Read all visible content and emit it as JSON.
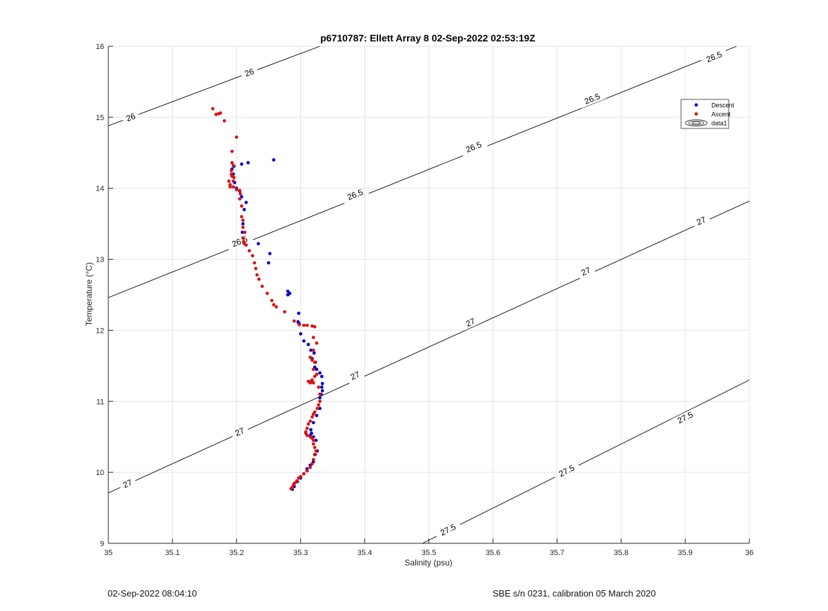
{
  "chart_data": {
    "type": "scatter",
    "title": "p6710787: Ellett Array 8 02-Sep-2022 02:53:19Z",
    "xlabel": "Salinity (psu)",
    "ylabel": "Temperature (°C)",
    "xlim": [
      35,
      36
    ],
    "ylim": [
      9,
      16
    ],
    "xticks": [
      "35",
      "35.1",
      "35.2",
      "35.3",
      "35.4",
      "35.5",
      "35.6",
      "35.7",
      "35.8",
      "35.9",
      "36"
    ],
    "yticks": [
      "9",
      "10",
      "11",
      "12",
      "13",
      "14",
      "15",
      "16"
    ],
    "grid": true,
    "legend_position": "top-right",
    "legend": [
      "Descent",
      "Ascent",
      "data1"
    ],
    "density_contours": [
      {
        "label": "26",
        "points": [
          [
            35.0,
            14.88
          ],
          [
            35.33,
            16.0
          ]
        ],
        "label_positions": [
          [
            35.035,
            15.0
          ],
          [
            35.22,
            15.63
          ]
        ]
      },
      {
        "label": "26.5",
        "points": [
          [
            35.0,
            12.46
          ],
          [
            35.98,
            16.0
          ]
        ],
        "label_positions": [
          [
            35.205,
            13.25
          ],
          [
            35.385,
            13.91
          ],
          [
            35.57,
            14.58
          ],
          [
            35.755,
            15.26
          ],
          [
            35.945,
            15.85
          ]
        ]
      },
      {
        "label": "27",
        "points": [
          [
            35.0,
            9.71
          ],
          [
            36.0,
            13.82
          ]
        ],
        "label_positions": [
          [
            35.03,
            9.84
          ],
          [
            35.205,
            10.57
          ],
          [
            35.385,
            11.36
          ],
          [
            35.565,
            12.11
          ],
          [
            35.745,
            12.83
          ],
          [
            35.925,
            13.54
          ]
        ]
      },
      {
        "label": "27.5",
        "points": [
          [
            35.49,
            9.0
          ],
          [
            36.0,
            11.3
          ]
        ],
        "label_positions": [
          [
            35.53,
            9.19
          ],
          [
            35.715,
            10.02
          ],
          [
            35.9,
            10.77
          ]
        ]
      }
    ],
    "series": [
      {
        "name": "Descent",
        "color": "#0000cc",
        "x": [
          35.258,
          35.218,
          35.208,
          35.196,
          35.193,
          35.195,
          35.197,
          35.2,
          35.205,
          35.208,
          35.215,
          35.212,
          35.21,
          35.209,
          35.234,
          35.252,
          35.25,
          35.28,
          35.28,
          35.283,
          35.297,
          35.296,
          35.297,
          35.298,
          35.3,
          35.305,
          35.312,
          35.316,
          35.321,
          35.318,
          35.323,
          35.322,
          35.325,
          35.33,
          35.333,
          35.334,
          35.333,
          35.334,
          35.332,
          35.33,
          35.33,
          35.325,
          35.32,
          35.316,
          35.317,
          35.315,
          35.32,
          35.324,
          35.326,
          35.322,
          35.32,
          35.315,
          35.31,
          35.305,
          35.3,
          35.295,
          35.29,
          35.287
        ],
        "y": [
          14.4,
          14.36,
          14.34,
          14.31,
          14.27,
          14.2,
          14.08,
          14.0,
          13.96,
          13.88,
          13.8,
          13.7,
          13.5,
          13.38,
          13.22,
          13.08,
          12.95,
          12.55,
          12.5,
          12.52,
          12.24,
          12.12,
          12.1,
          12.09,
          11.95,
          11.85,
          11.8,
          11.72,
          11.68,
          11.6,
          11.55,
          11.48,
          11.45,
          11.4,
          11.35,
          11.25,
          11.2,
          11.15,
          11.1,
          11.05,
          10.9,
          10.8,
          10.7,
          10.6,
          10.55,
          10.52,
          10.5,
          10.45,
          10.3,
          10.25,
          10.15,
          10.1,
          10.05,
          9.98,
          9.92,
          9.87,
          9.8,
          9.76
        ]
      },
      {
        "name": "Ascent",
        "color": "#dd1111",
        "x": [
          35.163,
          35.168,
          35.172,
          35.175,
          35.181,
          35.2,
          35.193,
          35.193,
          35.195,
          35.192,
          35.192,
          35.193,
          35.195,
          35.196,
          35.19,
          35.188,
          35.19,
          35.195,
          35.2,
          35.205,
          35.206,
          35.205,
          35.208,
          35.208,
          35.21,
          35.21,
          35.213,
          35.21,
          35.211,
          35.212,
          35.215,
          35.22,
          35.225,
          35.228,
          35.23,
          35.232,
          35.235,
          35.24,
          35.248,
          35.255,
          35.258,
          35.262,
          35.275,
          35.29,
          35.298,
          35.305,
          35.31,
          35.318,
          35.322,
          35.32,
          35.325,
          35.32,
          35.315,
          35.318,
          35.322,
          35.32,
          35.325,
          35.322,
          35.318,
          35.315,
          35.312,
          35.315,
          35.318,
          35.32,
          35.328,
          35.33,
          35.33,
          35.328,
          35.326,
          35.322,
          35.32,
          35.318,
          35.315,
          35.312,
          35.31,
          35.308,
          35.308,
          35.31,
          35.315,
          35.318,
          35.32,
          35.32,
          35.322,
          35.324,
          35.323,
          35.32,
          35.318,
          35.315,
          35.31,
          35.305,
          35.3,
          35.297,
          35.294,
          35.291,
          35.289,
          35.287,
          35.285
        ],
        "y": [
          15.12,
          15.04,
          15.05,
          15.06,
          14.95,
          14.72,
          14.52,
          14.36,
          14.32,
          14.25,
          14.2,
          14.17,
          14.1,
          14.15,
          14.05,
          14.1,
          14.02,
          14.02,
          13.98,
          13.97,
          13.92,
          13.85,
          13.75,
          13.6,
          13.55,
          13.45,
          13.38,
          13.3,
          13.25,
          13.22,
          13.2,
          13.12,
          13.05,
          12.95,
          12.87,
          12.78,
          12.72,
          12.62,
          12.52,
          12.42,
          12.36,
          12.33,
          12.26,
          12.13,
          12.08,
          12.07,
          12.07,
          12.06,
          12.05,
          11.9,
          11.82,
          11.72,
          11.62,
          11.58,
          11.55,
          11.45,
          11.38,
          11.35,
          11.3,
          11.28,
          11.28,
          11.26,
          11.27,
          11.26,
          11.2,
          11.1,
          11.0,
          10.95,
          10.9,
          10.85,
          10.82,
          10.78,
          10.72,
          10.68,
          10.62,
          10.57,
          10.55,
          10.52,
          10.5,
          10.48,
          10.45,
          10.4,
          10.35,
          10.3,
          10.25,
          10.18,
          10.12,
          10.07,
          10.02,
          9.98,
          9.94,
          9.92,
          9.88,
          9.85,
          9.83,
          9.79,
          9.77
        ]
      }
    ]
  },
  "footer": {
    "timestamp": "02-Sep-2022 08:04:10",
    "sensor": "SBE s/n 0231, calibration 05 March 2020"
  }
}
